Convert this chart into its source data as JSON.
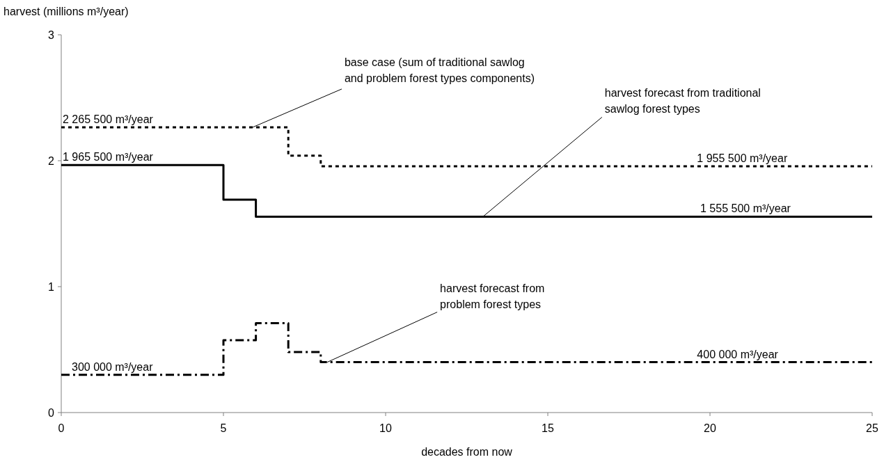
{
  "chart_data": {
    "type": "step",
    "xlabel": "decades from now",
    "ylabel": "harvest (millions m³/year)",
    "xlim": [
      0,
      25
    ],
    "xticks": [
      0,
      5,
      10,
      15,
      20,
      25
    ],
    "ylim": [
      0,
      3
    ],
    "yticks": [
      0,
      1,
      2,
      3
    ],
    "grid": false,
    "series": [
      {
        "color": "#000000",
        "line_style": "dotted",
        "x": [
          0,
          7,
          8,
          25
        ],
        "values": [
          2.2655,
          2.04,
          1.9555,
          1.9555
        ]
      },
      {
        "color": "#000000",
        "line_style": "solid",
        "x": [
          0,
          5,
          6,
          25
        ],
        "values": [
          1.9655,
          1.69,
          1.5555,
          1.5555
        ]
      },
      {
        "color": "#000000",
        "line_style": "dashed",
        "x": [
          0,
          5,
          6,
          7,
          8,
          25
        ],
        "values": [
          0.3,
          0.575,
          0.71,
          0.48,
          0.4,
          0.4
        ]
      }
    ],
    "annotations": [
      {
        "text": "base case (sum of traditional sawlog\nand problem forest types components)",
        "x": 5.9,
        "y": 2.2655
      },
      {
        "text": "harvest forecast from traditional\nsawlog forest types",
        "x": 13,
        "y": 1.5555
      },
      {
        "text": "harvest forecast from\nproblem forest types",
        "x": 8.2,
        "y": 0.4
      },
      {
        "text": "2 265 500 m³/year",
        "x": 0,
        "y": 2.2655
      },
      {
        "text": "1 965 500 m³/year",
        "x": 0,
        "y": 1.9655
      },
      {
        "text": "1 955 500 m³/year",
        "x": 19.6,
        "y": 1.9555
      },
      {
        "text": "1 555 500 m³/year",
        "x": 19.7,
        "y": 1.5555
      },
      {
        "text": "300 000 m³/year",
        "x": 0.15,
        "y": 0.3
      },
      {
        "text": "400 000 m³/year",
        "x": 19.6,
        "y": 0.4
      }
    ]
  }
}
